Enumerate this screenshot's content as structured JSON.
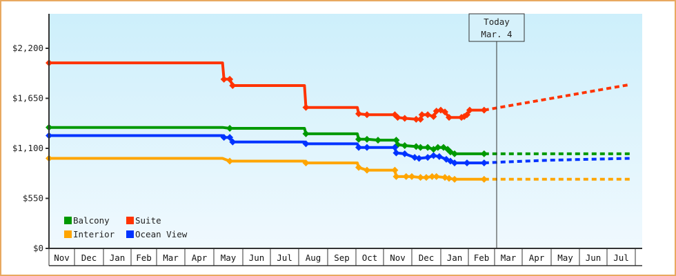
{
  "chart_data": {
    "type": "line",
    "title": "",
    "xlabel": "",
    "ylabel": "",
    "ylim": [
      0,
      2600
    ],
    "y_ticks": [
      {
        "value": 0,
        "label": "$0"
      },
      {
        "value": 550,
        "label": "$550"
      },
      {
        "value": 1100,
        "label": "$1,100"
      },
      {
        "value": 1650,
        "label": "$1,650"
      },
      {
        "value": 2200,
        "label": "$2,200"
      }
    ],
    "x_categories": [
      "Nov",
      "Dec",
      "Jan",
      "Feb",
      "Mar",
      "Apr",
      "May",
      "Jun",
      "Jul",
      "Aug",
      "Sep",
      "Oct",
      "Nov",
      "Dec",
      "Jan",
      "Feb",
      "Mar",
      "Apr",
      "May",
      "Jun",
      "Jul"
    ],
    "grid": false,
    "legend_position": "bottom-left inside plot",
    "today_marker": {
      "line1": "Today",
      "line2": "Mar. 4"
    },
    "series": [
      {
        "name": "Balcony",
        "color": "#009900",
        "points": [
          {
            "x": 0.0,
            "y": 1330
          },
          {
            "x": 6.3,
            "y": 1330
          },
          {
            "x": 6.55,
            "y": 1320
          },
          {
            "x": 9.2,
            "y": 1320
          },
          {
            "x": 9.25,
            "y": 1260
          },
          {
            "x": 11.05,
            "y": 1260
          },
          {
            "x": 11.1,
            "y": 1200
          },
          {
            "x": 11.4,
            "y": 1200
          },
          {
            "x": 11.8,
            "y": 1190
          },
          {
            "x": 12.45,
            "y": 1190
          },
          {
            "x": 12.5,
            "y": 1140
          },
          {
            "x": 12.75,
            "y": 1130
          },
          {
            "x": 13.15,
            "y": 1120
          },
          {
            "x": 13.3,
            "y": 1110
          },
          {
            "x": 13.55,
            "y": 1110
          },
          {
            "x": 13.75,
            "y": 1090
          },
          {
            "x": 13.9,
            "y": 1110
          },
          {
            "x": 14.1,
            "y": 1110
          },
          {
            "x": 14.25,
            "y": 1090
          },
          {
            "x": 14.35,
            "y": 1060
          },
          {
            "x": 14.5,
            "y": 1040
          },
          {
            "x": 15.6,
            "y": 1040
          }
        ],
        "projection": [
          {
            "x": 15.6,
            "y": 1040
          },
          {
            "x": 20.8,
            "y": 1040
          }
        ]
      },
      {
        "name": "Suite",
        "color": "#ff3300",
        "points": [
          {
            "x": 0.0,
            "y": 2040
          },
          {
            "x": 6.3,
            "y": 2040
          },
          {
            "x": 6.35,
            "y": 1860
          },
          {
            "x": 6.55,
            "y": 1860
          },
          {
            "x": 6.65,
            "y": 1790
          },
          {
            "x": 9.2,
            "y": 1790
          },
          {
            "x": 9.25,
            "y": 1550
          },
          {
            "x": 11.05,
            "y": 1550
          },
          {
            "x": 11.1,
            "y": 1480
          },
          {
            "x": 11.4,
            "y": 1470
          },
          {
            "x": 12.4,
            "y": 1470
          },
          {
            "x": 12.5,
            "y": 1440
          },
          {
            "x": 12.75,
            "y": 1430
          },
          {
            "x": 13.15,
            "y": 1420
          },
          {
            "x": 13.3,
            "y": 1420
          },
          {
            "x": 13.35,
            "y": 1470
          },
          {
            "x": 13.55,
            "y": 1470
          },
          {
            "x": 13.75,
            "y": 1450
          },
          {
            "x": 13.85,
            "y": 1510
          },
          {
            "x": 14.0,
            "y": 1520
          },
          {
            "x": 14.15,
            "y": 1500
          },
          {
            "x": 14.3,
            "y": 1440
          },
          {
            "x": 14.75,
            "y": 1440
          },
          {
            "x": 14.85,
            "y": 1450
          },
          {
            "x": 14.95,
            "y": 1470
          },
          {
            "x": 15.05,
            "y": 1520
          },
          {
            "x": 15.6,
            "y": 1520
          }
        ],
        "projection": [
          {
            "x": 15.6,
            "y": 1520
          },
          {
            "x": 20.8,
            "y": 1800
          }
        ]
      },
      {
        "name": "Interior",
        "color": "#ffa500",
        "points": [
          {
            "x": 0.0,
            "y": 990
          },
          {
            "x": 6.3,
            "y": 990
          },
          {
            "x": 6.55,
            "y": 960
          },
          {
            "x": 9.2,
            "y": 960
          },
          {
            "x": 9.25,
            "y": 940
          },
          {
            "x": 11.05,
            "y": 940
          },
          {
            "x": 11.1,
            "y": 890
          },
          {
            "x": 11.4,
            "y": 860
          },
          {
            "x": 12.4,
            "y": 860
          },
          {
            "x": 12.45,
            "y": 790
          },
          {
            "x": 12.8,
            "y": 790
          },
          {
            "x": 13.0,
            "y": 790
          },
          {
            "x": 13.3,
            "y": 780
          },
          {
            "x": 13.5,
            "y": 780
          },
          {
            "x": 13.7,
            "y": 790
          },
          {
            "x": 13.85,
            "y": 790
          },
          {
            "x": 14.15,
            "y": 780
          },
          {
            "x": 14.3,
            "y": 770
          },
          {
            "x": 14.5,
            "y": 760
          },
          {
            "x": 15.6,
            "y": 760
          }
        ],
        "projection": [
          {
            "x": 15.6,
            "y": 760
          },
          {
            "x": 20.8,
            "y": 760
          }
        ]
      },
      {
        "name": "Ocean View",
        "color": "#0033ff",
        "points": [
          {
            "x": 0.0,
            "y": 1240
          },
          {
            "x": 6.3,
            "y": 1240
          },
          {
            "x": 6.35,
            "y": 1220
          },
          {
            "x": 6.55,
            "y": 1220
          },
          {
            "x": 6.65,
            "y": 1170
          },
          {
            "x": 9.2,
            "y": 1170
          },
          {
            "x": 9.25,
            "y": 1150
          },
          {
            "x": 11.05,
            "y": 1150
          },
          {
            "x": 11.1,
            "y": 1110
          },
          {
            "x": 11.4,
            "y": 1110
          },
          {
            "x": 12.4,
            "y": 1110
          },
          {
            "x": 12.45,
            "y": 1050
          },
          {
            "x": 12.75,
            "y": 1040
          },
          {
            "x": 13.1,
            "y": 1000
          },
          {
            "x": 13.25,
            "y": 990
          },
          {
            "x": 13.55,
            "y": 1000
          },
          {
            "x": 13.75,
            "y": 1020
          },
          {
            "x": 13.95,
            "y": 1010
          },
          {
            "x": 14.2,
            "y": 980
          },
          {
            "x": 14.35,
            "y": 960
          },
          {
            "x": 14.5,
            "y": 940
          },
          {
            "x": 14.95,
            "y": 940
          },
          {
            "x": 15.6,
            "y": 940
          }
        ],
        "projection": [
          {
            "x": 15.6,
            "y": 940
          },
          {
            "x": 16.3,
            "y": 950
          },
          {
            "x": 18.0,
            "y": 970
          },
          {
            "x": 20.8,
            "y": 990
          }
        ]
      }
    ]
  },
  "legend": {
    "items": [
      {
        "label": "Balcony",
        "color": "#009900"
      },
      {
        "label": "Suite",
        "color": "#ff3300"
      },
      {
        "label": "Interior",
        "color": "#ffa500"
      },
      {
        "label": "Ocean View",
        "color": "#0033ff"
      }
    ]
  },
  "today": {
    "line1": "Today",
    "line2": "Mar. 4"
  }
}
